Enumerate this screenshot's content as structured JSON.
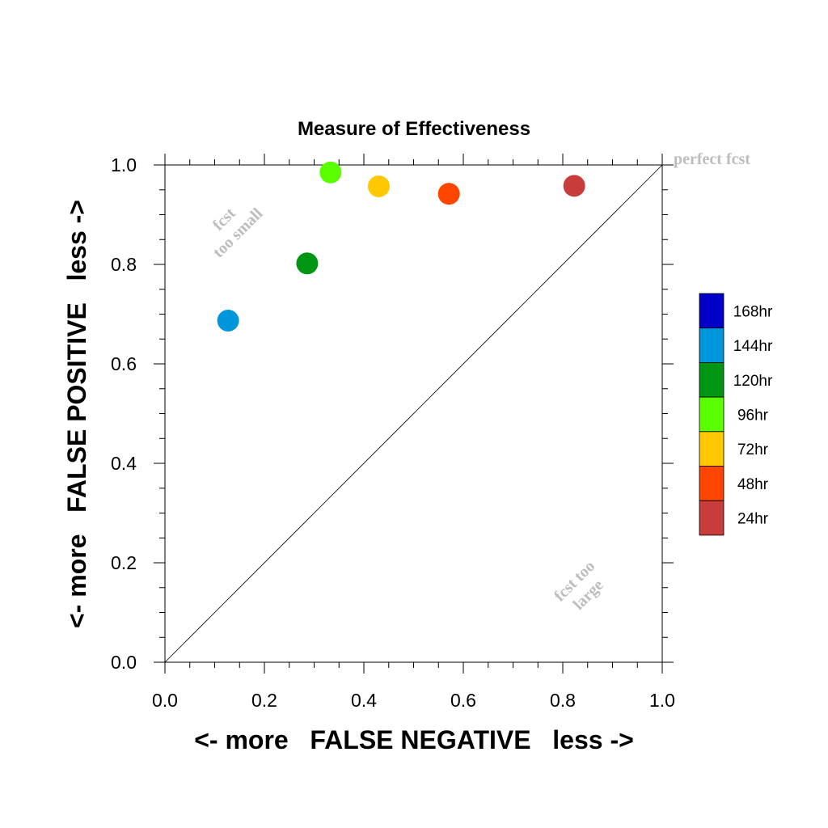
{
  "chart_data": {
    "type": "scatter",
    "title": "Measure of Effectiveness",
    "xlabel": "<- more   FALSE NEGATIVE   less ->",
    "ylabel": "<- more   FALSE POSITIVE   less ->",
    "xlim": [
      0,
      1
    ],
    "ylim": [
      0,
      1
    ],
    "xticks": [
      "0.0",
      "0.2",
      "0.4",
      "0.6",
      "0.8",
      "1.0"
    ],
    "yticks": [
      "0.0",
      "0.2",
      "0.4",
      "0.6",
      "0.8",
      "1.0"
    ],
    "grid": false,
    "diagonal_line": true,
    "legend_position": "right",
    "legend": [
      {
        "label": "168hr",
        "color": "#0000c8"
      },
      {
        "label": "144hr",
        "color": "#0096dc"
      },
      {
        "label": "120hr",
        "color": "#009614"
      },
      {
        "label": "96hr",
        "color": "#5aff00"
      },
      {
        "label": "72hr",
        "color": "#ffc800"
      },
      {
        "label": "48hr",
        "color": "#ff4600"
      },
      {
        "label": "24hr",
        "color": "#c83c3c"
      }
    ],
    "points": [
      {
        "label": "144hr",
        "x": 0.127,
        "y": 0.687,
        "color": "#0096dc"
      },
      {
        "label": "120hr",
        "x": 0.286,
        "y": 0.802,
        "color": "#009614"
      },
      {
        "label": "96hr",
        "x": 0.333,
        "y": 0.985,
        "color": "#5aff00"
      },
      {
        "label": "72hr",
        "x": 0.43,
        "y": 0.957,
        "color": "#ffc800"
      },
      {
        "label": "48hr",
        "x": 0.571,
        "y": 0.942,
        "color": "#ff4600"
      },
      {
        "label": "24hr",
        "x": 0.823,
        "y": 0.958,
        "color": "#c83c3c"
      }
    ],
    "annotations": {
      "perfect": "perfect fcst",
      "too_small_line1": "fcst",
      "too_small_line2": "too small",
      "too_large_line1": "fcst too",
      "too_large_line2": "large"
    }
  }
}
